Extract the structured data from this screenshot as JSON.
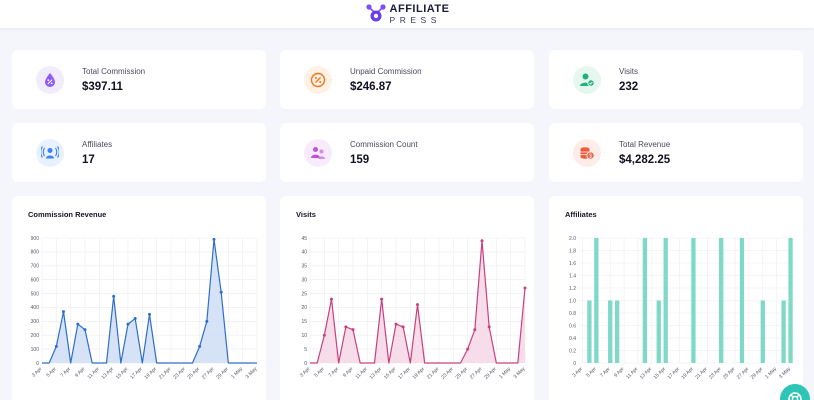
{
  "header": {
    "brand_line1": "AFFILIATE",
    "brand_line2": "PRESS",
    "logo_icon": "affiliatepress-logo-icon"
  },
  "stats": [
    {
      "key": "total-commission",
      "label": "Total Commission",
      "value": "$397.11",
      "icon": "percent-drop-icon",
      "color": "#8b5cf6",
      "bg": "#f1ecff"
    },
    {
      "key": "unpaid-commission",
      "label": "Unpaid Commission",
      "value": "$246.87",
      "icon": "percent-circle-icon",
      "color": "#f97316",
      "bg": "#fff1e6"
    },
    {
      "key": "visits",
      "label": "Visits",
      "value": "232",
      "icon": "user-check-icon",
      "color": "#22b07d",
      "bg": "#e6f7f0"
    },
    {
      "key": "affiliates",
      "label": "Affiliates",
      "value": "17",
      "icon": "broadcast-user-icon",
      "color": "#3b82f6",
      "bg": "#e8f1ff"
    },
    {
      "key": "commission-count",
      "label": "Commission Count",
      "value": "159",
      "icon": "users-icon",
      "color": "#c054d6",
      "bg": "#f8ebfb"
    },
    {
      "key": "total-revenue",
      "label": "Total Revenue",
      "value": "$4,282.25",
      "icon": "coins-icon",
      "color": "#ef5b3c",
      "bg": "#feece8"
    }
  ],
  "chart_data": [
    {
      "type": "area",
      "title": "Commission Revenue",
      "color": "#2f6fc9",
      "fill": "#cfddf5",
      "x": [
        "3 Apr",
        "4 Apr",
        "5 Apr",
        "6 Apr",
        "7 Apr",
        "8 Apr",
        "9 Apr",
        "10 Apr",
        "11 Apr",
        "12 Apr",
        "13 Apr",
        "14 Apr",
        "15 Apr",
        "16 Apr",
        "17 Apr",
        "18 Apr",
        "19 Apr",
        "20 Apr",
        "21 Apr",
        "22 Apr",
        "23 Apr",
        "24 Apr",
        "25 Apr",
        "26 Apr",
        "27 Apr",
        "28 Apr",
        "29 Apr",
        "30 Apr",
        "1 May",
        "2 May",
        "3 May"
      ],
      "x_tick_labels": [
        "3 Apr",
        "5 Apr",
        "7 Apr",
        "9 Apr",
        "11 Apr",
        "13 Apr",
        "15 Apr",
        "17 Apr",
        "19 Apr",
        "21 Apr",
        "23 Apr",
        "25 Apr",
        "27 Apr",
        "29 Apr",
        "1 May",
        "3 May"
      ],
      "values": [
        0,
        0,
        120,
        370,
        0,
        280,
        240,
        0,
        0,
        0,
        480,
        0,
        280,
        320,
        0,
        350,
        0,
        0,
        0,
        0,
        0,
        0,
        120,
        300,
        890,
        510,
        0,
        0,
        0,
        0,
        0
      ],
      "ylim": [
        0,
        900
      ],
      "y_ticks": [
        0,
        100,
        200,
        300,
        400,
        500,
        600,
        700,
        800,
        900
      ],
      "grid": true
    },
    {
      "type": "area",
      "title": "Visits",
      "color": "#c9407e",
      "fill": "#f6d7e5",
      "x": [
        "3 Apr",
        "4 Apr",
        "5 Apr",
        "6 Apr",
        "7 Apr",
        "8 Apr",
        "9 Apr",
        "10 Apr",
        "11 Apr",
        "12 Apr",
        "13 Apr",
        "14 Apr",
        "15 Apr",
        "16 Apr",
        "17 Apr",
        "18 Apr",
        "19 Apr",
        "20 Apr",
        "21 Apr",
        "22 Apr",
        "23 Apr",
        "24 Apr",
        "25 Apr",
        "26 Apr",
        "27 Apr",
        "28 Apr",
        "29 Apr",
        "30 Apr",
        "1 May",
        "2 May",
        "3 May"
      ],
      "x_tick_labels": [
        "3 Apr",
        "5 Apr",
        "7 Apr",
        "9 Apr",
        "11 Apr",
        "13 Apr",
        "15 Apr",
        "17 Apr",
        "19 Apr",
        "21 Apr",
        "23 Apr",
        "25 Apr",
        "27 Apr",
        "29 Apr",
        "1 May",
        "3 May"
      ],
      "values": [
        0,
        0,
        10,
        23,
        0,
        13,
        12,
        0,
        0,
        0,
        23,
        0,
        14,
        13,
        0,
        21,
        0,
        0,
        0,
        0,
        0,
        0,
        5,
        12,
        44,
        13,
        0,
        0,
        0,
        0,
        27
      ],
      "ylim": [
        0,
        45
      ],
      "y_ticks": [
        0,
        5,
        10,
        15,
        20,
        25,
        30,
        35,
        40,
        45
      ],
      "grid": true
    },
    {
      "type": "bar",
      "title": "Affiliates",
      "color": "#7ed9c7",
      "x": [
        "3 Apr",
        "4 Apr",
        "5 Apr",
        "6 Apr",
        "7 Apr",
        "8 Apr",
        "9 Apr",
        "10 Apr",
        "11 Apr",
        "12 Apr",
        "13 Apr",
        "14 Apr",
        "15 Apr",
        "16 Apr",
        "17 Apr",
        "18 Apr",
        "19 Apr",
        "20 Apr",
        "21 Apr",
        "22 Apr",
        "23 Apr",
        "24 Apr",
        "25 Apr",
        "26 Apr",
        "27 Apr",
        "28 Apr",
        "29 Apr",
        "30 Apr",
        "1 May",
        "2 May",
        "3 May"
      ],
      "x_tick_labels": [
        "3 Apr",
        "5 Apr",
        "7 Apr",
        "9 Apr",
        "11 Apr",
        "13 Apr",
        "15 Apr",
        "17 Apr",
        "19 Apr",
        "21 Apr",
        "23 Apr",
        "25 Apr",
        "27 Apr",
        "29 Apr",
        "1 May",
        "3 May"
      ],
      "values": [
        0,
        1,
        2,
        0,
        1,
        1,
        0,
        0,
        0,
        2,
        0,
        1,
        2,
        0,
        0,
        0,
        2,
        0,
        0,
        0,
        2,
        0,
        0,
        2,
        0,
        0,
        1,
        0,
        0,
        1,
        2
      ],
      "ylim": [
        0,
        2
      ],
      "y_ticks": [
        "0",
        "0.2",
        "0.4",
        "0.6",
        "0.8",
        "1.0",
        "1.2",
        "1.4",
        "1.6",
        "1.8",
        "2.0"
      ],
      "grid": true
    }
  ],
  "fab": {
    "icon": "support-icon"
  }
}
